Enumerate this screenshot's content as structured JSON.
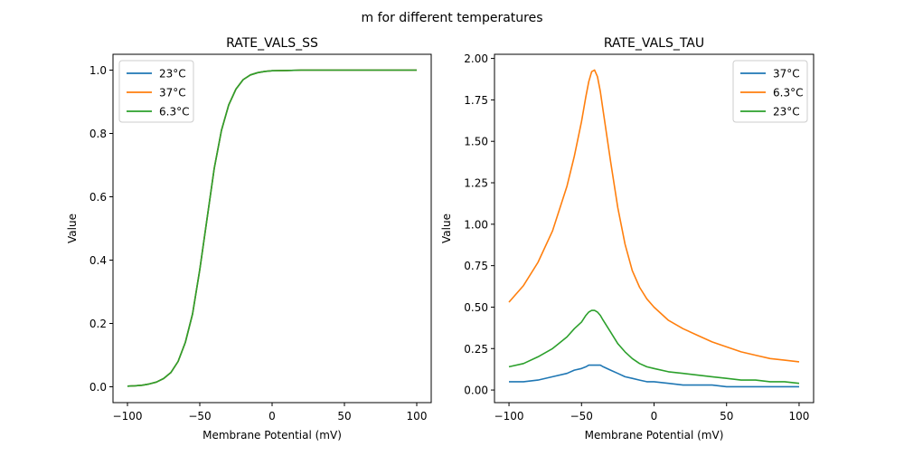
{
  "figure_title": "m for different temperatures",
  "chart_data": [
    {
      "type": "line",
      "title": "RATE_VALS_SS",
      "xlabel": "Membrane Potential (mV)",
      "ylabel": "Value",
      "xlim": [
        -110,
        110
      ],
      "ylim": [
        -0.05,
        1.05
      ],
      "xticks": [
        -100,
        -50,
        0,
        50,
        100
      ],
      "xtick_labels": [
        "−100",
        "−50",
        "0",
        "50",
        "100"
      ],
      "yticks": [
        0.0,
        0.2,
        0.4,
        0.6,
        0.8,
        1.0
      ],
      "ytick_labels": [
        "0.0",
        "0.2",
        "0.4",
        "0.6",
        "0.8",
        "1.0"
      ],
      "grid": false,
      "legend_position": "top-left",
      "x": [
        -100,
        -95,
        -90,
        -85,
        -80,
        -75,
        -70,
        -65,
        -60,
        -55,
        -50,
        -45,
        -40,
        -35,
        -30,
        -25,
        -20,
        -15,
        -10,
        -5,
        0,
        10,
        20,
        30,
        40,
        50,
        60,
        70,
        80,
        90,
        100
      ],
      "series": [
        {
          "name": "23°C",
          "color": "#1f77b4",
          "values": [
            0.002,
            0.003,
            0.005,
            0.009,
            0.015,
            0.026,
            0.045,
            0.08,
            0.14,
            0.23,
            0.37,
            0.53,
            0.69,
            0.81,
            0.89,
            0.94,
            0.97,
            0.985,
            0.992,
            0.996,
            0.998,
            0.999,
            1.0,
            1.0,
            1.0,
            1.0,
            1.0,
            1.0,
            1.0,
            1.0,
            1.0
          ]
        },
        {
          "name": "37°C",
          "color": "#ff7f0e",
          "values": [
            0.002,
            0.003,
            0.005,
            0.009,
            0.015,
            0.026,
            0.045,
            0.08,
            0.14,
            0.23,
            0.37,
            0.53,
            0.69,
            0.81,
            0.89,
            0.94,
            0.97,
            0.985,
            0.992,
            0.996,
            0.998,
            0.999,
            1.0,
            1.0,
            1.0,
            1.0,
            1.0,
            1.0,
            1.0,
            1.0,
            1.0
          ]
        },
        {
          "name": "6.3°C",
          "color": "#2ca02c",
          "values": [
            0.002,
            0.003,
            0.005,
            0.009,
            0.015,
            0.026,
            0.045,
            0.08,
            0.14,
            0.23,
            0.37,
            0.53,
            0.69,
            0.81,
            0.89,
            0.94,
            0.97,
            0.985,
            0.992,
            0.996,
            0.998,
            0.999,
            1.0,
            1.0,
            1.0,
            1.0,
            1.0,
            1.0,
            1.0,
            1.0,
            1.0
          ]
        }
      ]
    },
    {
      "type": "line",
      "title": "RATE_VALS_TAU",
      "xlabel": "Membrane Potential (mV)",
      "ylabel": "Value",
      "xlim": [
        -110,
        110
      ],
      "ylim": [
        -0.076,
        2.025
      ],
      "xticks": [
        -100,
        -50,
        0,
        50,
        100
      ],
      "xtick_labels": [
        "−100",
        "−50",
        "0",
        "50",
        "100"
      ],
      "yticks": [
        0.0,
        0.25,
        0.5,
        0.75,
        1.0,
        1.25,
        1.5,
        1.75,
        2.0
      ],
      "ytick_labels": [
        "0.00",
        "0.25",
        "0.50",
        "0.75",
        "1.00",
        "1.25",
        "1.50",
        "1.75",
        "2.00"
      ],
      "grid": false,
      "legend_position": "top-right",
      "x": [
        -100,
        -90,
        -80,
        -70,
        -60,
        -55,
        -50,
        -47,
        -45,
        -43,
        -41,
        -39,
        -37,
        -35,
        -30,
        -25,
        -20,
        -15,
        -10,
        -5,
        0,
        10,
        20,
        30,
        40,
        50,
        60,
        70,
        80,
        90,
        100
      ],
      "series": [
        {
          "name": "37°C",
          "color": "#1f77b4",
          "values": [
            0.05,
            0.05,
            0.06,
            0.08,
            0.1,
            0.12,
            0.13,
            0.14,
            0.15,
            0.15,
            0.15,
            0.15,
            0.15,
            0.14,
            0.12,
            0.1,
            0.08,
            0.07,
            0.06,
            0.05,
            0.05,
            0.04,
            0.03,
            0.03,
            0.03,
            0.02,
            0.02,
            0.02,
            0.02,
            0.02,
            0.02
          ]
        },
        {
          "name": "6.3°C",
          "color": "#ff7f0e",
          "values": [
            0.53,
            0.63,
            0.77,
            0.96,
            1.23,
            1.41,
            1.62,
            1.77,
            1.86,
            1.92,
            1.93,
            1.89,
            1.8,
            1.68,
            1.38,
            1.1,
            0.88,
            0.72,
            0.62,
            0.55,
            0.5,
            0.42,
            0.37,
            0.33,
            0.29,
            0.26,
            0.23,
            0.21,
            0.19,
            0.18,
            0.17
          ]
        },
        {
          "name": "23°C",
          "color": "#2ca02c",
          "values": [
            0.14,
            0.16,
            0.2,
            0.25,
            0.32,
            0.37,
            0.41,
            0.45,
            0.47,
            0.48,
            0.48,
            0.47,
            0.45,
            0.42,
            0.35,
            0.28,
            0.23,
            0.19,
            0.16,
            0.14,
            0.13,
            0.11,
            0.1,
            0.09,
            0.08,
            0.07,
            0.06,
            0.06,
            0.05,
            0.05,
            0.04
          ]
        }
      ]
    }
  ]
}
